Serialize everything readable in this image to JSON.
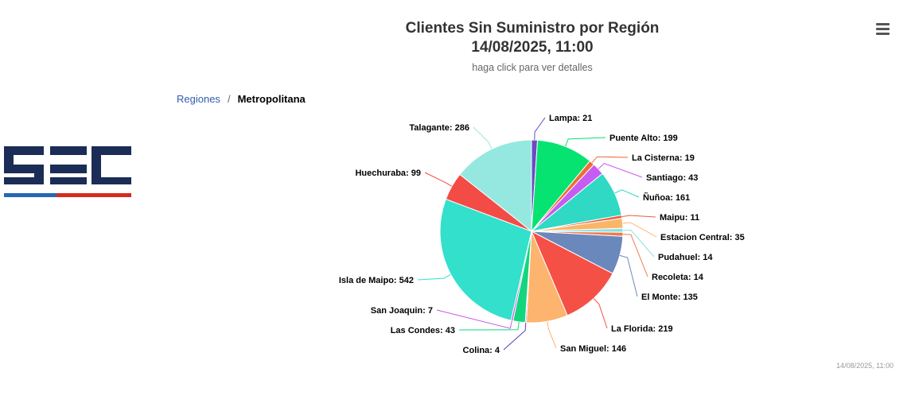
{
  "chart_data": {
    "type": "pie",
    "title": "Clientes Sin Suministro por Región\n14/08/2025, 11:00",
    "subtitle": "haga click para ver detalles",
    "series": [
      {
        "name": "Lampa",
        "value": 21,
        "color": "#6a4bc4"
      },
      {
        "name": "Puente Alto",
        "value": 199,
        "color": "#06e370"
      },
      {
        "name": "La Cisterna",
        "value": 19,
        "color": "#f26b36"
      },
      {
        "name": "Santiago",
        "value": 43,
        "color": "#c65cf2"
      },
      {
        "name": "Ñuñoa",
        "value": 161,
        "color": "#2fd9c4"
      },
      {
        "name": "Maipu",
        "value": 11,
        "color": "#e8603c"
      },
      {
        "name": "Estacion Central",
        "value": 35,
        "color": "#fbb56a"
      },
      {
        "name": "Pudahuel",
        "value": 14,
        "color": "#8de2e0"
      },
      {
        "name": "Recoleta",
        "value": 14,
        "color": "#ee7a4e"
      },
      {
        "name": "El Monte",
        "value": 135,
        "color": "#6b88bd"
      },
      {
        "name": "La Florida",
        "value": 219,
        "color": "#f55046"
      },
      {
        "name": "San Miguel",
        "value": 146,
        "color": "#fdb46e"
      },
      {
        "name": "Colina",
        "value": 4,
        "color": "#5a3fc0"
      },
      {
        "name": "Las Condes",
        "value": 43,
        "color": "#12d67e"
      },
      {
        "name": "San Joaquin",
        "value": 7,
        "color": "#c75ae8"
      },
      {
        "name": "Isla de Maipo",
        "value": 542,
        "color": "#32e0cc"
      },
      {
        "name": "Huechuraba",
        "value": 99,
        "color": "#f34b45"
      },
      {
        "name": "Talagante",
        "value": 286,
        "color": "#94e8e0"
      }
    ]
  },
  "chart": {
    "title_line1": "Clientes Sin Suministro por Región",
    "title_line2": "14/08/2025, 11:00"
  },
  "breadcrumb": {
    "parent": "Regiones",
    "separator": "/",
    "current": "Metropolitana"
  },
  "credits": "14/08/2025, 11:00",
  "menu_icon": "hamburger-icon",
  "logo_text": "SEC",
  "colors": {
    "logo_navy": "#1b2d57",
    "logo_blue": "#2467b3",
    "logo_red": "#d52b1e"
  }
}
